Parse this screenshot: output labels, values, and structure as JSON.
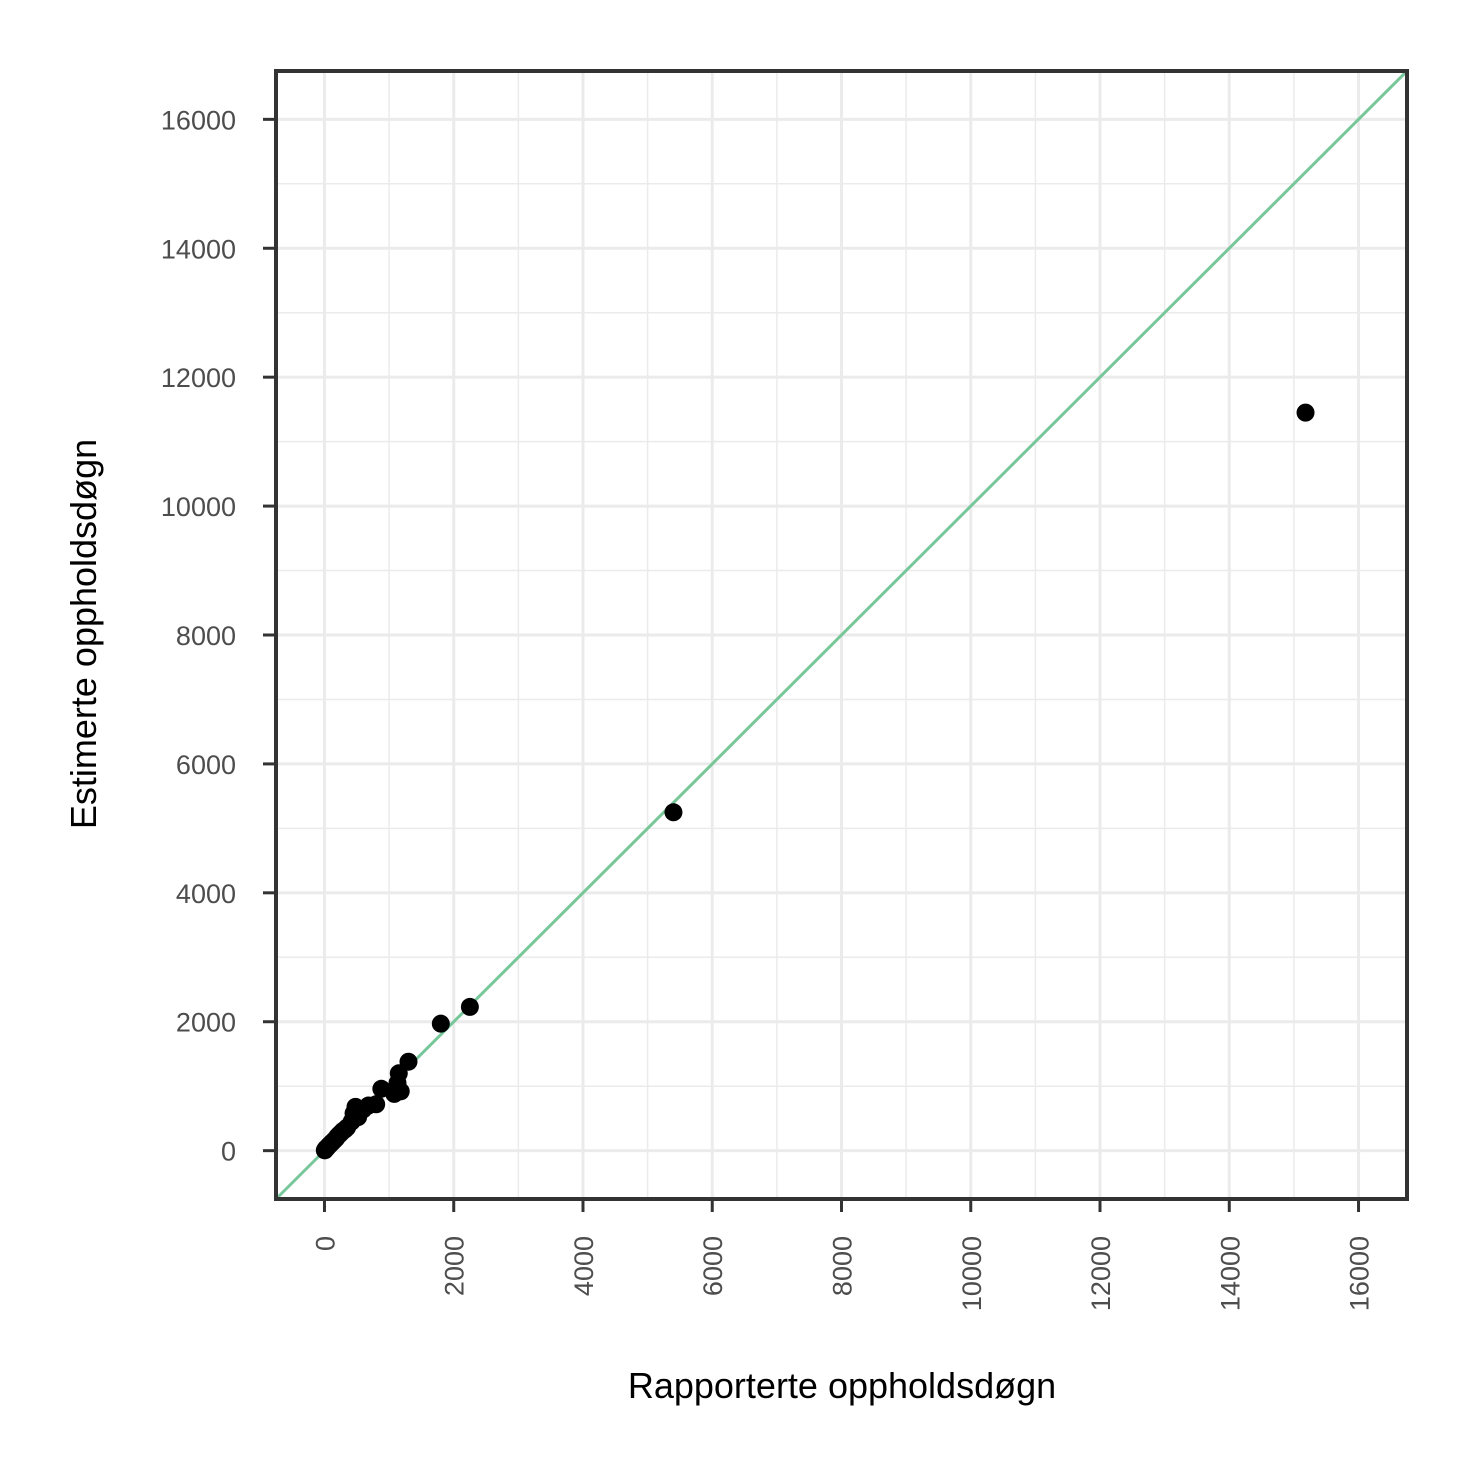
{
  "chart_data": {
    "type": "scatter",
    "title": "",
    "xlabel": "Rapporterte oppholdsdøgn",
    "ylabel": "Estimerte oppholdsdøgn",
    "xlim": [
      -750,
      16750
    ],
    "ylim": [
      -750,
      16750
    ],
    "x_ticks": [
      0,
      2000,
      4000,
      6000,
      8000,
      10000,
      12000,
      14000,
      16000
    ],
    "y_ticks": [
      0,
      2000,
      4000,
      6000,
      8000,
      10000,
      12000,
      14000,
      16000
    ],
    "x_tick_labels": [
      "0",
      "2000",
      "4000",
      "6000",
      "8000",
      "10000",
      "12000",
      "14000",
      "16000"
    ],
    "y_tick_labels": [
      "0",
      "2000",
      "4000",
      "6000",
      "8000",
      "10000",
      "12000",
      "14000",
      "16000"
    ],
    "grid": true,
    "reference_line": "y = x",
    "colors": {
      "points": "#000000",
      "reference_line": "#78c79a",
      "frame": "#333333",
      "grid": "#ebebeb"
    },
    "points": [
      {
        "x": 5,
        "y": 5
      },
      {
        "x": 15,
        "y": 20
      },
      {
        "x": 25,
        "y": 35
      },
      {
        "x": 40,
        "y": 45
      },
      {
        "x": 60,
        "y": 70
      },
      {
        "x": 80,
        "y": 90
      },
      {
        "x": 100,
        "y": 110
      },
      {
        "x": 120,
        "y": 130
      },
      {
        "x": 150,
        "y": 160
      },
      {
        "x": 180,
        "y": 190
      },
      {
        "x": 200,
        "y": 220
      },
      {
        "x": 230,
        "y": 250
      },
      {
        "x": 260,
        "y": 280
      },
      {
        "x": 290,
        "y": 310
      },
      {
        "x": 320,
        "y": 330
      },
      {
        "x": 350,
        "y": 360
      },
      {
        "x": 420,
        "y": 450
      },
      {
        "x": 450,
        "y": 580
      },
      {
        "x": 480,
        "y": 680
      },
      {
        "x": 520,
        "y": 520
      },
      {
        "x": 600,
        "y": 640
      },
      {
        "x": 680,
        "y": 700
      },
      {
        "x": 800,
        "y": 720
      },
      {
        "x": 880,
        "y": 960
      },
      {
        "x": 1080,
        "y": 880
      },
      {
        "x": 1130,
        "y": 1050
      },
      {
        "x": 1150,
        "y": 1200
      },
      {
        "x": 1180,
        "y": 920
      },
      {
        "x": 1300,
        "y": 1380
      },
      {
        "x": 1800,
        "y": 1970
      },
      {
        "x": 2250,
        "y": 2230
      },
      {
        "x": 5400,
        "y": 5250
      },
      {
        "x": 15180,
        "y": 11450
      }
    ]
  }
}
